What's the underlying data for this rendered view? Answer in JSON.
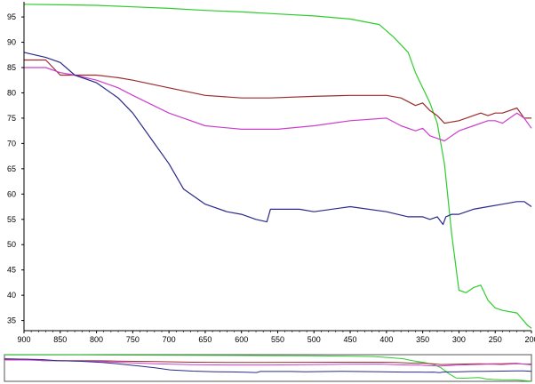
{
  "chart_data": {
    "type": "line",
    "title": "",
    "xlabel": "",
    "ylabel": "",
    "xlim": [
      900,
      200
    ],
    "ylim": [
      33,
      98
    ],
    "x_ticks": [
      900,
      850,
      800,
      750,
      700,
      650,
      600,
      550,
      500,
      450,
      400,
      350,
      300,
      250,
      200
    ],
    "y_ticks": [
      35,
      40,
      45,
      50,
      55,
      60,
      65,
      70,
      75,
      80,
      85,
      90,
      95
    ],
    "grid": false,
    "colors": {
      "green": "#2ecc2e",
      "brown": "#9b2d2d",
      "magenta": "#cc3fcc",
      "navy": "#2a2a8a",
      "axis": "#000000"
    },
    "series": [
      {
        "color": "#2ecc2e",
        "x": [
          900,
          850,
          800,
          750,
          700,
          650,
          600,
          550,
          500,
          450,
          410,
          390,
          370,
          360,
          350,
          340,
          330,
          320,
          310,
          300,
          290,
          280,
          270,
          260,
          250,
          240,
          220,
          205,
          200
        ],
        "y": [
          97.5,
          97.4,
          97.3,
          97.0,
          96.7,
          96.3,
          96.0,
          95.6,
          95.2,
          94.6,
          93.5,
          91.0,
          88.0,
          84.0,
          81.0,
          78.0,
          74.0,
          66.0,
          52.0,
          41.0,
          40.5,
          41.5,
          42.0,
          39.0,
          37.5,
          37.0,
          36.5,
          34.0,
          33.5
        ]
      },
      {
        "color": "#9b2d2d",
        "x": [
          900,
          870,
          850,
          830,
          800,
          770,
          750,
          700,
          650,
          600,
          560,
          500,
          450,
          400,
          380,
          360,
          350,
          340,
          330,
          320,
          300,
          280,
          270,
          260,
          250,
          240,
          220,
          210,
          200
        ],
        "y": [
          86.5,
          86.5,
          83.5,
          83.5,
          83.5,
          83.0,
          82.5,
          81.0,
          79.5,
          79.0,
          79.0,
          79.3,
          79.5,
          79.5,
          79.0,
          77.5,
          78.0,
          76.5,
          75.5,
          74.0,
          74.5,
          75.5,
          76.0,
          75.5,
          76.0,
          76.0,
          77.0,
          75.0,
          75.0
        ]
      },
      {
        "color": "#cc3fcc",
        "x": [
          900,
          870,
          850,
          830,
          800,
          770,
          750,
          700,
          650,
          600,
          550,
          500,
          450,
          400,
          380,
          360,
          350,
          340,
          330,
          320,
          300,
          280,
          260,
          250,
          240,
          230,
          220,
          210,
          200
        ],
        "y": [
          85.0,
          85.0,
          84.0,
          83.5,
          82.5,
          81.0,
          79.5,
          76.0,
          73.5,
          72.8,
          72.8,
          73.5,
          74.5,
          75.0,
          73.5,
          72.5,
          73.0,
          71.5,
          71.0,
          70.5,
          72.5,
          73.5,
          74.5,
          74.5,
          74.0,
          75.0,
          76.0,
          75.0,
          73.0
        ]
      },
      {
        "color": "#2a2a8a",
        "x": [
          900,
          870,
          850,
          830,
          800,
          770,
          750,
          720,
          700,
          680,
          650,
          620,
          600,
          580,
          565,
          560,
          550,
          520,
          500,
          450,
          400,
          370,
          350,
          340,
          330,
          322,
          318,
          310,
          300,
          280,
          260,
          240,
          220,
          210,
          200
        ],
        "y": [
          88.0,
          87.0,
          86.0,
          83.5,
          82.0,
          79.0,
          76.0,
          70.0,
          66.0,
          61.0,
          58.0,
          56.5,
          56.0,
          55.0,
          54.5,
          57.0,
          57.0,
          57.0,
          56.5,
          57.5,
          56.5,
          55.5,
          55.5,
          55.0,
          55.5,
          54.0,
          55.5,
          56.0,
          56.0,
          57.0,
          57.5,
          58.0,
          58.5,
          58.5,
          57.5
        ]
      }
    ]
  }
}
